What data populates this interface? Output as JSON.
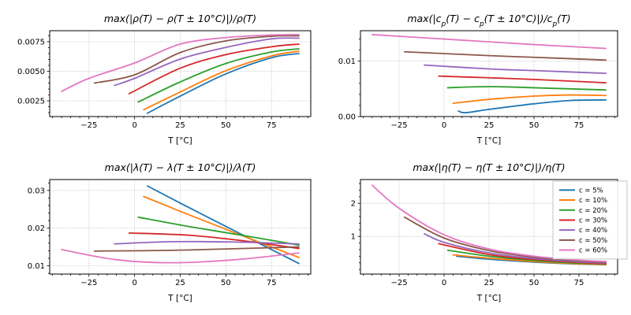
{
  "figure": {
    "background": "#ffffff",
    "text_color": "#000000",
    "grid_color": "#b0b0b0",
    "frame_color": "#000000"
  },
  "axis_shared": {
    "xlabel": "T [°C]",
    "x_major_ticks": [
      -25,
      0,
      25,
      50,
      75
    ],
    "x_major_labels": [
      "−25",
      "0",
      "25",
      "50",
      "75"
    ],
    "x_minor_step": 5,
    "xlim": [
      -46.5,
      96.5
    ]
  },
  "legend": {
    "position": "upper right",
    "entries": [
      {
        "label": "c = 5%",
        "color": "#1f77b4"
      },
      {
        "label": "c = 10%",
        "color": "#ff7f0e"
      },
      {
        "label": "c = 20%",
        "color": "#2ca02c"
      },
      {
        "label": "c = 30%",
        "color": "#d62728"
      },
      {
        "label": "c = 40%",
        "color": "#9467bd"
      },
      {
        "label": "c = 50%",
        "color": "#8c564b"
      },
      {
        "label": "c = 60%",
        "color": "#e377c2"
      }
    ]
  },
  "chart_data": [
    {
      "id": "rho",
      "type": "line",
      "title": "max(|ρ(T) − ρ(T ± 10°C)|)/ρ(T)",
      "xlabel": "T [°C]",
      "ylabel": "",
      "xlim": [
        -46.5,
        96.5
      ],
      "ylim": [
        0.00117,
        0.00843
      ],
      "grid": true,
      "yticks": {
        "values": [
          0.0025,
          0.005,
          0.0075
        ],
        "labels": [
          "0.0025",
          "0.0050",
          "0.0075"
        ],
        "minor_step": 0.0005
      },
      "series": [
        {
          "name": "c = 5%",
          "color": "#1f77b4",
          "points": [
            [
              7,
              0.00145
            ],
            [
              25,
              0.0029
            ],
            [
              50,
              0.00478
            ],
            [
              75,
              0.00615
            ],
            [
              90,
              0.0065
            ]
          ]
        },
        {
          "name": "c = 10%",
          "color": "#ff7f0e",
          "points": [
            [
              5,
              0.00175
            ],
            [
              25,
              0.00325
            ],
            [
              50,
              0.00505
            ],
            [
              75,
              0.0063
            ],
            [
              90,
              0.0067
            ]
          ]
        },
        {
          "name": "c = 20%",
          "color": "#2ca02c",
          "points": [
            [
              2,
              0.0024
            ],
            [
              25,
              0.0041
            ],
            [
              50,
              0.00566
            ],
            [
              75,
              0.00663
            ],
            [
              90,
              0.0069
            ]
          ]
        },
        {
          "name": "c = 30%",
          "color": "#d62728",
          "points": [
            [
              -3,
              0.0031
            ],
            [
              25,
              0.00526
            ],
            [
              50,
              0.00641
            ],
            [
              75,
              0.00707
            ],
            [
              90,
              0.0073
            ]
          ]
        },
        {
          "name": "c = 40%",
          "color": "#9467bd",
          "points": [
            [
              -11,
              0.0038
            ],
            [
              0,
              0.0044
            ],
            [
              25,
              0.00603
            ],
            [
              50,
              0.00702
            ],
            [
              75,
              0.00774
            ],
            [
              90,
              0.0078
            ]
          ]
        },
        {
          "name": "c = 50%",
          "color": "#8c564b",
          "points": [
            [
              -22,
              0.004
            ],
            [
              0,
              0.0047
            ],
            [
              25,
              0.00658
            ],
            [
              50,
              0.00757
            ],
            [
              75,
              0.00796
            ],
            [
              90,
              0.008
            ]
          ]
        },
        {
          "name": "c = 60%",
          "color": "#e377c2",
          "points": [
            [
              -40,
              0.0033
            ],
            [
              -25,
              0.0044
            ],
            [
              0,
              0.0057
            ],
            [
              25,
              0.0073
            ],
            [
              50,
              0.00785
            ],
            [
              75,
              0.00807
            ],
            [
              90,
              0.0081
            ]
          ]
        }
      ]
    },
    {
      "id": "cp",
      "type": "line",
      "title": "max(|c_p(T) − c_p(T ± 10°C)|)/c_p(T)",
      "xlabel": "T [°C]",
      "ylabel": "",
      "xlim": [
        -46.5,
        96.5
      ],
      "ylim": [
        0.0,
        0.0155
      ],
      "grid": true,
      "yticks": {
        "values": [
          0.0,
          0.01
        ],
        "labels": [
          "0.00",
          "0.01"
        ],
        "minor_step": 0.002
      },
      "series": [
        {
          "name": "c = 5%",
          "color": "#1f77b4",
          "points": [
            [
              8,
              0.001
            ],
            [
              12,
              0.0007
            ],
            [
              25,
              0.0013
            ],
            [
              50,
              0.0023
            ],
            [
              70,
              0.0029
            ],
            [
              90,
              0.003
            ]
          ]
        },
        {
          "name": "c = 10%",
          "color": "#ff7f0e",
          "points": [
            [
              5,
              0.0024
            ],
            [
              25,
              0.0031
            ],
            [
              50,
              0.0037
            ],
            [
              70,
              0.0039
            ],
            [
              90,
              0.0038
            ]
          ]
        },
        {
          "name": "c = 20%",
          "color": "#2ca02c",
          "points": [
            [
              2,
              0.0052
            ],
            [
              25,
              0.0054
            ],
            [
              50,
              0.0052
            ],
            [
              90,
              0.0048
            ]
          ]
        },
        {
          "name": "c = 30%",
          "color": "#d62728",
          "points": [
            [
              -3,
              0.0073
            ],
            [
              25,
              0.007
            ],
            [
              50,
              0.0067
            ],
            [
              90,
              0.0061
            ]
          ]
        },
        {
          "name": "c = 40%",
          "color": "#9467bd",
          "points": [
            [
              -11,
              0.0093
            ],
            [
              25,
              0.0086
            ],
            [
              50,
              0.0083
            ],
            [
              90,
              0.0078
            ]
          ]
        },
        {
          "name": "c = 50%",
          "color": "#8c564b",
          "points": [
            [
              -22,
              0.0117
            ],
            [
              25,
              0.011
            ],
            [
              50,
              0.0107
            ],
            [
              90,
              0.0102
            ]
          ]
        },
        {
          "name": "c = 60%",
          "color": "#e377c2",
          "points": [
            [
              -40,
              0.0148
            ],
            [
              0,
              0.014
            ],
            [
              50,
              0.013
            ],
            [
              90,
              0.0123
            ]
          ]
        }
      ]
    },
    {
      "id": "lambda",
      "type": "line",
      "title": "max(|λ(T) − λ(T ± 10°C)|)/λ(T)",
      "xlabel": "T [°C]",
      "ylabel": "",
      "xlim": [
        -46.5,
        96.5
      ],
      "ylim": [
        0.0078,
        0.0329
      ],
      "grid": true,
      "yticks": {
        "values": [
          0.01,
          0.02,
          0.03
        ],
        "labels": [
          "0.01",
          "0.02",
          "0.03"
        ],
        "minor_step": 0.002
      },
      "series": [
        {
          "name": "c = 5%",
          "color": "#1f77b4",
          "points": [
            [
              7,
              0.0312
            ],
            [
              30,
              0.0254
            ],
            [
              60,
              0.018
            ],
            [
              90,
              0.0106
            ]
          ]
        },
        {
          "name": "c = 10%",
          "color": "#ff7f0e",
          "points": [
            [
              5,
              0.0284
            ],
            [
              30,
              0.0235
            ],
            [
              60,
              0.0178
            ],
            [
              90,
              0.0122
            ]
          ]
        },
        {
          "name": "c = 20%",
          "color": "#2ca02c",
          "points": [
            [
              2,
              0.0229
            ],
            [
              30,
              0.0204
            ],
            [
              60,
              0.018
            ],
            [
              90,
              0.0155
            ]
          ]
        },
        {
          "name": "c = 30%",
          "color": "#d62728",
          "points": [
            [
              -3,
              0.0187
            ],
            [
              30,
              0.0181
            ],
            [
              60,
              0.0166
            ],
            [
              90,
              0.0146
            ]
          ]
        },
        {
          "name": "c = 40%",
          "color": "#9467bd",
          "points": [
            [
              -11,
              0.0158
            ],
            [
              20,
              0.0164
            ],
            [
              55,
              0.0163
            ],
            [
              90,
              0.0158
            ]
          ]
        },
        {
          "name": "c = 50%",
          "color": "#8c564b",
          "points": [
            [
              -22,
              0.0139
            ],
            [
              20,
              0.0141
            ],
            [
              60,
              0.0146
            ],
            [
              90,
              0.015
            ]
          ]
        },
        {
          "name": "c = 60%",
          "color": "#e377c2",
          "points": [
            [
              -40,
              0.0143
            ],
            [
              -10,
              0.0116
            ],
            [
              20,
              0.0108
            ],
            [
              55,
              0.0116
            ],
            [
              90,
              0.0134
            ]
          ]
        }
      ]
    },
    {
      "id": "eta",
      "type": "line",
      "title": "max(|η(T) − η(T ± 10°C)|)/η(T)",
      "xlabel": "T [°C]",
      "ylabel": "",
      "xlim": [
        -46.5,
        96.5
      ],
      "ylim": [
        -0.14,
        2.72
      ],
      "grid": true,
      "legend": true,
      "yticks": {
        "values": [
          1,
          2
        ],
        "labels": [
          "1",
          "2"
        ],
        "minor_step": 0.2
      },
      "series": [
        {
          "name": "c = 5%",
          "color": "#1f77b4",
          "points": [
            [
              7,
              0.4
            ],
            [
              25,
              0.31
            ],
            [
              50,
              0.22
            ],
            [
              75,
              0.16
            ],
            [
              90,
              0.14
            ]
          ]
        },
        {
          "name": "c = 10%",
          "color": "#ff7f0e",
          "points": [
            [
              5,
              0.44
            ],
            [
              25,
              0.34
            ],
            [
              50,
              0.24
            ],
            [
              75,
              0.17
            ],
            [
              90,
              0.15
            ]
          ]
        },
        {
          "name": "c = 20%",
          "color": "#2ca02c",
          "points": [
            [
              2,
              0.58
            ],
            [
              25,
              0.4
            ],
            [
              50,
              0.27
            ],
            [
              75,
              0.19
            ],
            [
              90,
              0.17
            ]
          ]
        },
        {
          "name": "c = 30%",
          "color": "#d62728",
          "points": [
            [
              -3,
              0.78
            ],
            [
              25,
              0.45
            ],
            [
              50,
              0.3
            ],
            [
              75,
              0.21
            ],
            [
              90,
              0.18
            ]
          ]
        },
        {
          "name": "c = 40%",
          "color": "#9467bd",
          "points": [
            [
              -11,
              1.08
            ],
            [
              0,
              0.82
            ],
            [
              25,
              0.5
            ],
            [
              50,
              0.33
            ],
            [
              75,
              0.23
            ],
            [
              90,
              0.2
            ]
          ]
        },
        {
          "name": "c = 50%",
          "color": "#8c564b",
          "points": [
            [
              -22,
              1.58
            ],
            [
              0,
              0.95
            ],
            [
              25,
              0.57
            ],
            [
              50,
              0.37
            ],
            [
              75,
              0.26
            ],
            [
              90,
              0.22
            ]
          ]
        },
        {
          "name": "c = 60%",
          "color": "#e377c2",
          "points": [
            [
              -40,
              2.55
            ],
            [
              -25,
              1.85
            ],
            [
              0,
              1.05
            ],
            [
              25,
              0.62
            ],
            [
              50,
              0.4
            ],
            [
              75,
              0.28
            ],
            [
              90,
              0.24
            ]
          ]
        }
      ]
    }
  ]
}
